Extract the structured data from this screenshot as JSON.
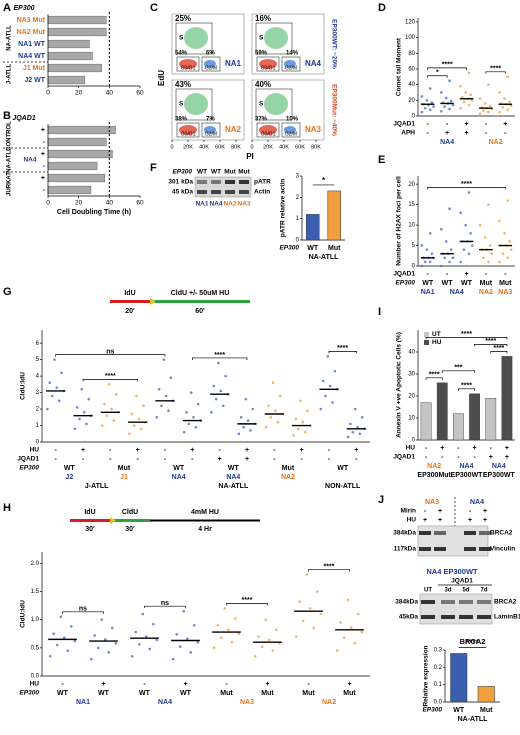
{
  "panel_a": {
    "label": "A",
    "header": "EP300",
    "categories": [
      "NA3 Mut",
      "NA2 Mut",
      "NA1 WT",
      "NA4 WT",
      "J1 Mut",
      "J2 WT"
    ],
    "values": [
      38,
      38,
      27,
      29,
      35,
      24
    ],
    "label_colors": [
      "#e8731a",
      "#e8731a",
      "#1f3a93",
      "#1f3a93",
      "#e8731a",
      "#1f3a93"
    ],
    "color": "#a9a9a9",
    "xlim": [
      0,
      60
    ],
    "xticks": [
      0,
      20,
      40,
      60
    ],
    "ref_line": 40,
    "groups": [
      {
        "text": "NA-ATLL",
        "from": 0,
        "to": 3
      },
      {
        "text": "J-ATLL",
        "from": 4,
        "to": 5
      }
    ]
  },
  "panel_b": {
    "label": "B",
    "header": "JQAD1",
    "categories": [
      "+",
      "-",
      "+",
      "-",
      "+",
      "-"
    ],
    "values": [
      44,
      38,
      42,
      32,
      37,
      28
    ],
    "color": "#a9a9a9",
    "xlim": [
      0,
      60
    ],
    "xticks": [
      0,
      20,
      40,
      60
    ],
    "ref_line": 40,
    "groups": [
      {
        "text": "CONTROL",
        "from": 0,
        "to": 1
      },
      {
        "text": "NA-ATLL",
        "from": 2,
        "to": 3
      },
      {
        "text": "JURKAT",
        "from": 4,
        "to": 5
      }
    ],
    "lines": [
      {
        "text": "NA4",
        "from": 2,
        "to": 3
      }
    ],
    "xlabel": "Cell Doubling Time (h)"
  },
  "panel_c": {
    "label": "C",
    "ylabel": "EdU",
    "xlabel": "PI",
    "gates": [
      "S",
      "G0/G1",
      "G2/M"
    ],
    "xlim": [
      0,
      90000
    ],
    "xticks": [
      0,
      {
        "value": 20000,
        "label": "20K"
      },
      {
        "value": 40000,
        "label": "40K"
      },
      {
        "value": 60000,
        "label": "60K"
      },
      {
        "value": 80000,
        "label": "80K"
      }
    ],
    "plots": [
      {
        "name": "NA1",
        "color": "#1f3a93",
        "s_pct": "25%",
        "g1_pct": "54%",
        "g2m_pct": "6%"
      },
      {
        "name": "NA4",
        "color": "#1f3a93",
        "s_pct": "16%",
        "g1_pct": "59%",
        "g2m_pct": "14%"
      },
      {
        "name": "NA2",
        "color": "#e8731a",
        "s_pct": "43%",
        "g1_pct": "38%",
        "g2m_pct": "7%"
      },
      {
        "name": "NA3",
        "color": "#e8731a",
        "s_pct": "40%",
        "g1_pct": "37%",
        "g2m_pct": "10%"
      }
    ],
    "row_labels": [
      "EP300WT: ~20%",
      "EP300Mut: ~40%"
    ],
    "row_label_colors": [
      "#1f3a93",
      "#d9401a"
    ]
  },
  "panel_d": {
    "label": "D",
    "ylabel": "Comet tail Moment",
    "ylim": [
      0,
      125
    ],
    "yticks": [
      0,
      20,
      40,
      60,
      80,
      100,
      120
    ],
    "colors": [
      "#4a6fc0",
      "#4a6fc0",
      "#f0a040",
      "#f0a040",
      "#f0a040"
    ],
    "points": [
      [
        5,
        8,
        10,
        12,
        14,
        15,
        17,
        20,
        25,
        35
      ],
      [
        6,
        9,
        12,
        14,
        16,
        17,
        19,
        23,
        30,
        45
      ],
      [
        10,
        14,
        18,
        20,
        22,
        24,
        27,
        30,
        38,
        55
      ],
      [
        3,
        5,
        7,
        9,
        10,
        11,
        13,
        16,
        22,
        40
      ],
      [
        5,
        8,
        11,
        13,
        15,
        16,
        18,
        22,
        30,
        50
      ]
    ],
    "medians": [
      15,
      16,
      22,
      10,
      15
    ],
    "stars": [
      {
        "text": "*",
        "from": 0,
        "to": 1
      },
      {
        "text": "****",
        "from": 0,
        "to": 2
      },
      {
        "text": "****",
        "from": 3,
        "to": 4
      }
    ],
    "rows": [
      {
        "name": "JQAD1",
        "values": [
          "-",
          "-",
          "+",
          "-",
          "+"
        ]
      },
      {
        "name": "APH",
        "values": [
          "-",
          "+",
          "+",
          "-",
          "-"
        ]
      }
    ],
    "spans": [
      {
        "items": [
          {
            "text": "NA4",
            "from": 0,
            "to": 2,
            "color": "#1f3a93"
          },
          {
            "text": "NA2",
            "from": 3,
            "to": 4,
            "color": "#e8731a"
          }
        ]
      }
    ]
  },
  "panel_e": {
    "label": "E",
    "ylabel": "Number of H2AX foci per cell",
    "ylim": [
      0,
      22
    ],
    "yticks": [
      0,
      5,
      10,
      15,
      20
    ],
    "colors": [
      "#4a6fc0",
      "#4a6fc0",
      "#4a6fc0",
      "#f0a040",
      "#f0a040"
    ],
    "points": [
      [
        0,
        1,
        1,
        2,
        2,
        2,
        3,
        4,
        5,
        8
      ],
      [
        0,
        1,
        2,
        2,
        3,
        3,
        4,
        6,
        9,
        14
      ],
      [
        1,
        3,
        4,
        5,
        6,
        6,
        8,
        10,
        13,
        18
      ],
      [
        0,
        1,
        2,
        3,
        4,
        4,
        5,
        7,
        10,
        15
      ],
      [
        1,
        2,
        3,
        4,
        5,
        5,
        6,
        8,
        11,
        16
      ]
    ],
    "medians": [
      2,
      3,
      6,
      4,
      5
    ],
    "stars": [
      {
        "text": "****",
        "from": 0,
        "to": 4
      }
    ],
    "rows": [
      {
        "name": "JQAD1",
        "values": [
          "-",
          "-",
          "+",
          "-",
          "-"
        ]
      },
      {
        "name": "EP300",
        "values": [
          "WT",
          "WT",
          "WT",
          "Mut",
          "Mut"
        ]
      }
    ],
    "spans": [
      {
        "items": [
          {
            "text": "NA1",
            "from": 0,
            "to": 0,
            "color": "#1f3a93"
          },
          {
            "text": "NA4",
            "from": 1,
            "to": 2,
            "color": "#1f3a93"
          },
          {
            "text": "NA2",
            "from": 3,
            "to": 3,
            "color": "#e8731a"
          },
          {
            "text": "NA3",
            "from": 4,
            "to": 4,
            "color": "#e8731a"
          }
        ]
      }
    ]
  },
  "panel_f": {
    "label": "F",
    "blot": {
      "header": "EP300",
      "lanes": [
        "WT",
        "WT",
        "Mut",
        "Mut"
      ],
      "lines": [
        "NA1",
        "NA4",
        "NA2",
        "NA3"
      ],
      "line_colors": [
        "#1f3a93",
        "#1f3a93",
        "#e8731a",
        "#e8731a"
      ],
      "sizes": [
        "301 kDa",
        "45 kDa"
      ],
      "bands": [
        "pATR",
        "Actin"
      ]
    },
    "chart": {
      "ylabel": "pATR relative actin",
      "categories": [
        "WT",
        "Mut"
      ],
      "values": [
        1.2,
        2.3
      ],
      "colors": [
        "#3a5fb0",
        "#f0a040"
      ],
      "ylim": [
        0,
        3
      ],
      "yticks": [
        0,
        1,
        2,
        3
      ],
      "star": "*",
      "row_label": "EP300",
      "group": "NA-ATLL"
    }
  },
  "panel_g": {
    "label": "G",
    "schematic": {
      "first": "IdU",
      "second": "CldU +/- 50uM HU",
      "t1": "20'",
      "t2": "60'"
    },
    "ylabel": "CldU:IdU",
    "ylim": [
      0,
      6.8
    ],
    "yticks": [
      0,
      1,
      2,
      3,
      4,
      5,
      6
    ],
    "colors": [
      "#4a6fc0",
      "#4a6fc0",
      "#f0a040",
      "#f0a040",
      "#4a6fc0",
      "#4a6fc0",
      "#4a6fc0",
      "#4a6fc0",
      "#f0a040",
      "#f0a040",
      "#4a6fc0",
      "#4a6fc0"
    ],
    "points": [
      [
        2.0,
        2.5,
        2.8,
        3.1,
        3.3,
        3.6,
        4.2,
        5.0
      ],
      [
        0.8,
        1.1,
        1.4,
        1.6,
        1.8,
        2.1,
        2.6,
        3.2
      ],
      [
        1.0,
        1.3,
        1.6,
        1.8,
        2.0,
        2.3,
        2.9,
        3.5
      ],
      [
        0.5,
        0.8,
        1.0,
        1.2,
        1.4,
        1.7,
        2.2,
        2.8
      ],
      [
        1.5,
        1.9,
        2.2,
        2.5,
        2.8,
        3.2,
        3.9,
        5.0
      ],
      [
        0.6,
        0.9,
        1.1,
        1.3,
        1.5,
        1.8,
        2.3,
        3.0
      ],
      [
        1.8,
        2.2,
        2.6,
        2.9,
        3.1,
        3.4,
        4.0,
        4.8
      ],
      [
        0.5,
        0.7,
        0.9,
        1.1,
        1.3,
        1.5,
        2.0,
        2.6
      ],
      [
        0.9,
        1.2,
        1.5,
        1.7,
        1.9,
        2.2,
        2.8,
        3.6
      ],
      [
        0.4,
        0.6,
        0.8,
        1.0,
        1.2,
        1.4,
        1.9,
        2.5
      ],
      [
        2.0,
        2.4,
        2.8,
        3.2,
        3.4,
        3.7,
        4.3,
        5.2
      ],
      [
        0.3,
        0.5,
        0.6,
        0.8,
        0.9,
        1.1,
        1.5,
        2.0
      ]
    ],
    "medians": [
      3.1,
      1.6,
      1.8,
      1.2,
      2.5,
      1.3,
      2.9,
      1.1,
      1.7,
      1.0,
      3.2,
      0.8
    ],
    "stars": [
      {
        "text": "****",
        "from": 1,
        "to": 3
      },
      {
        "text": "ns",
        "from": 0,
        "to": 4
      },
      {
        "text": "****",
        "from": 5,
        "to": 7
      },
      {
        "text": "****",
        "from": 10,
        "to": 11
      }
    ],
    "rows": [
      {
        "name": "HU",
        "values": [
          "-",
          "+",
          "-",
          "+",
          "-",
          "+",
          "-",
          "+",
          "-",
          "+",
          "-",
          "+"
        ]
      },
      {
        "name": "JQAD1",
        "values": [
          "-",
          "-",
          "-",
          "-",
          "-",
          "-",
          "+",
          "+",
          "-",
          "-",
          "-",
          "-"
        ]
      }
    ],
    "spans": [
      {
        "name": "EP300",
        "items": [
          {
            "text": "WT",
            "from": 0,
            "to": 1,
            "color": "#000000"
          },
          {
            "text": "Mut",
            "from": 2,
            "to": 3,
            "color": "#000000"
          },
          {
            "text": "WT",
            "from": 4,
            "to": 5,
            "color": "#000000"
          },
          {
            "text": "WT",
            "from": 6,
            "to": 7,
            "color": "#000000"
          },
          {
            "text": "Mut",
            "from": 8,
            "to": 9,
            "color": "#000000"
          },
          {
            "text": "WT",
            "from": 10,
            "to": 11,
            "color": "#000000"
          }
        ]
      },
      {
        "items": [
          {
            "text": "J2",
            "from": 0,
            "to": 1,
            "color": "#1f3a93"
          },
          {
            "text": "J1",
            "from": 2,
            "to": 3,
            "color": "#e8731a"
          },
          {
            "text": "NA4",
            "from": 4,
            "to": 5,
            "color": "#1f3a93"
          },
          {
            "text": "NA4",
            "from": 6,
            "to": 7,
            "color": "#1f3a93"
          },
          {
            "text": "NA2",
            "from": 8,
            "to": 9,
            "color": "#e8731a"
          }
        ]
      },
      {
        "items": [
          {
            "text": "J-ATLL",
            "from": 0,
            "to": 3,
            "color": "#000000"
          },
          {
            "text": "NA-ATLL",
            "from": 4,
            "to": 9,
            "color": "#000000"
          },
          {
            "text": "NON-ATLL",
            "from": 10,
            "to": 11,
            "color": "#000000"
          }
        ]
      }
    ]
  },
  "panel_h": {
    "label": "H",
    "schematic": {
      "first": "IdU",
      "second": "CldU",
      "third": "4mM HU",
      "t1": "30'",
      "t2": "30'",
      "t3": "4 Hr"
    },
    "ylabel": "CldU:IdU",
    "ylim": [
      0,
      2.2
    ],
    "yticks": [
      {
        "value": 0,
        "label": "0.0"
      },
      0.5,
      {
        "value": 1,
        "label": "1.0"
      },
      1.5,
      {
        "value": 2,
        "label": "2.0"
      }
    ],
    "colors": [
      "#4a6fc0",
      "#4a6fc0",
      "#4a6fc0",
      "#4a6fc0",
      "#f0a040",
      "#f0a040",
      "#f0a040",
      "#f0a040"
    ],
    "points": [
      [
        0.35,
        0.45,
        0.55,
        0.62,
        0.68,
        0.75,
        0.88,
        1.05
      ],
      [
        0.3,
        0.42,
        0.5,
        0.58,
        0.65,
        0.72,
        0.85,
        1.0
      ],
      [
        0.35,
        0.48,
        0.56,
        0.64,
        0.7,
        0.78,
        0.92,
        1.1
      ],
      [
        0.3,
        0.42,
        0.52,
        0.6,
        0.66,
        0.74,
        0.9,
        1.15
      ],
      [
        0.5,
        0.6,
        0.68,
        0.75,
        0.82,
        0.9,
        1.02,
        1.2
      ],
      [
        0.35,
        0.45,
        0.52,
        0.58,
        0.64,
        0.7,
        0.82,
        1.0
      ],
      [
        0.7,
        0.85,
        0.98,
        1.1,
        1.2,
        1.32,
        1.5,
        1.8
      ],
      [
        0.45,
        0.58,
        0.68,
        0.78,
        0.86,
        0.95,
        1.1,
        1.35
      ]
    ],
    "medians": [
      0.65,
      0.62,
      0.67,
      0.63,
      0.78,
      0.6,
      1.15,
      0.82
    ],
    "stars": [
      {
        "text": "ns",
        "from": 0,
        "to": 1
      },
      {
        "text": "ns",
        "from": 2,
        "to": 3
      },
      {
        "text": "****",
        "from": 4,
        "to": 5
      },
      {
        "text": "****",
        "from": 6,
        "to": 7
      }
    ],
    "rows": [
      {
        "name": "HU",
        "values": [
          "-",
          "+",
          "-",
          "+",
          "-",
          "+",
          "-",
          "+"
        ]
      },
      {
        "name": "EP300",
        "values": [
          "WT",
          "WT",
          "WT",
          "WT",
          "Mut",
          "Mut",
          "Mut",
          "Mut"
        ]
      }
    ],
    "spans": [
      {
        "items": [
          {
            "text": "NA1",
            "from": 0,
            "to": 1,
            "color": "#1f3a93"
          },
          {
            "text": "NA4",
            "from": 2,
            "to": 3,
            "color": "#1f3a93"
          },
          {
            "text": "NA3",
            "from": 4,
            "to": 5,
            "color": "#e8731a"
          },
          {
            "text": "NA2",
            "from": 6,
            "to": 7,
            "color": "#e8731a"
          }
        ]
      }
    ]
  },
  "panel_i": {
    "label": "I",
    "ylabel": "Annexin V +ve Apoptotic Cells (%)",
    "ylim": [
      0,
      50
    ],
    "yticks": [
      0,
      10,
      20,
      30,
      40
    ],
    "series": [
      {
        "name": "UT",
        "color": "#c4c4c4",
        "values": [
          17,
          12,
          19
        ]
      },
      {
        "name": "HU",
        "color": "#4d4d4d",
        "values": [
          26,
          21,
          38
        ]
      }
    ],
    "stars": [
      {
        "text": "****",
        "from": 0,
        "to": 1
      },
      {
        "text": "****",
        "from": 2,
        "to": 3
      },
      {
        "text": "***",
        "from": 1,
        "to": 3
      },
      {
        "text": "****",
        "from": 4,
        "to": 5
      },
      {
        "text": "****",
        "from": 3,
        "to": 5
      },
      {
        "text": "****",
        "from": 0,
        "to": 5
      }
    ],
    "rows": [
      {
        "name": "HU",
        "values": [
          "-",
          "+",
          "-",
          "+",
          "-",
          "+"
        ]
      },
      {
        "name": "JQAD1",
        "values": [
          "-",
          "-",
          "-",
          "-",
          "+",
          "+"
        ]
      }
    ],
    "spans": [
      {
        "items": [
          {
            "text": "NA2",
            "from": 0,
            "to": 1,
            "color": "#e8731a"
          },
          {
            "text": "NA4",
            "from": 2,
            "to": 3,
            "color": "#1f3a93"
          },
          {
            "text": "NA4",
            "from": 4,
            "to": 5,
            "color": "#1f3a93"
          }
        ]
      },
      {
        "items": [
          {
            "text": "EP300Mut",
            "from": 0,
            "to": 1,
            "color": "#000000"
          },
          {
            "text": "EP300WT",
            "from": 2,
            "to": 3,
            "color": "#000000"
          },
          {
            "text": "EP300WT",
            "from": 4,
            "to": 5,
            "color": "#000000"
          }
        ]
      }
    ]
  },
  "panel_j": {
    "label": "J",
    "blot1": {
      "lines": [
        "NA3",
        "NA4"
      ],
      "line_colors": [
        "#e8731a",
        "#1f3a93"
      ],
      "rows": [
        {
          "name": "Mirin",
          "values": [
            "-",
            "+",
            "-",
            "+"
          ]
        },
        {
          "name": "HU",
          "values": [
            "+",
            "+",
            "+",
            "+"
          ]
        }
      ],
      "sizes": [
        "384kDa",
        "117kDa"
      ],
      "bands": [
        "BRCA2",
        "Vinculin"
      ]
    },
    "blot2": {
      "title": "NA4 EP300WT",
      "header": "JQAD1",
      "lanes": [
        "UT",
        "3d",
        "5d",
        "7d"
      ],
      "sizes": [
        "384kDa",
        "45kDa"
      ],
      "bands": [
        "BRCA2",
        "LaminB1"
      ]
    },
    "chart": {
      "title": "BRCA2",
      "ylabel": "Relative expression",
      "categories": [
        "WT",
        "Mut"
      ],
      "values": [
        0.28,
        0.09
      ],
      "colors": [
        "#3a5fb0",
        "#f0a040"
      ],
      "ylim": [
        0,
        0.3
      ],
      "yticks": [
        {
          "value": 0,
          "label": "0.0"
        },
        0.1,
        0.2,
        0.3
      ],
      "star": "****",
      "row_label": "EP300",
      "group": "NA-ATLL"
    }
  }
}
